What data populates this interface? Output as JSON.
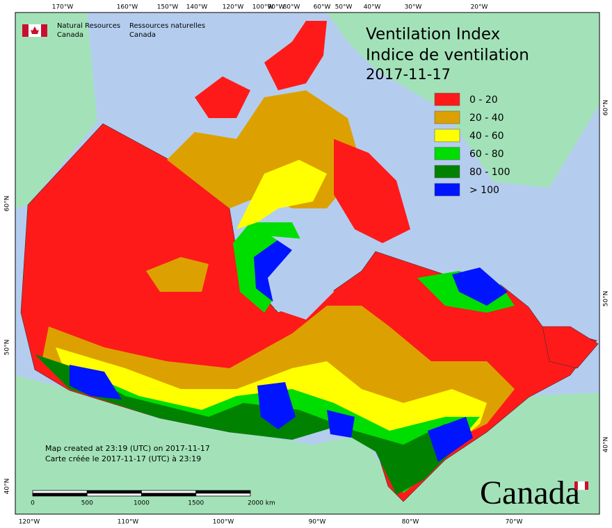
{
  "header": {
    "org_en_1": "Natural Resources",
    "org_en_2": "Canada",
    "org_fr_1": "Ressources naturelles",
    "org_fr_2": "Canada"
  },
  "title": {
    "line_1": "Ventilation Index",
    "line_2": "Indice de ventilation",
    "date": "2017-11-17"
  },
  "legend": [
    {
      "label": "0 - 20",
      "color": "#ff1a1a"
    },
    {
      "label": "20 - 40",
      "color": "#dca100"
    },
    {
      "label": "40 - 60",
      "color": "#ffff00"
    },
    {
      "label": "60 - 80",
      "color": "#00dd00"
    },
    {
      "label": "80 - 100",
      "color": "#008200"
    },
    {
      "label": "> 100",
      "color": "#0014ff"
    }
  ],
  "graticule": {
    "top": [
      "170°W",
      "160°W",
      "150°W",
      "140°W",
      "120°W",
      "100°W",
      "90°W",
      "80°W",
      "60°W",
      "50°W",
      "40°W",
      "30°W",
      "20°W"
    ],
    "bottom": [
      "120°W",
      "110°W",
      "100°W",
      "90°W",
      "80°W",
      "70°W"
    ],
    "left": [
      "60°N",
      "50°N",
      "40°N"
    ],
    "right": [
      "60°N",
      "50°N",
      "40°N"
    ]
  },
  "scale_bar": [
    "0",
    "500",
    "1000",
    "1500",
    "2000  km"
  ],
  "footer": {
    "line_1": "Map created at 23:19 (UTC) on 2017-11-17",
    "line_2": "Carte créée le 2017-11-17 (UTC) à 23:19"
  },
  "wordmark": "Canada"
}
